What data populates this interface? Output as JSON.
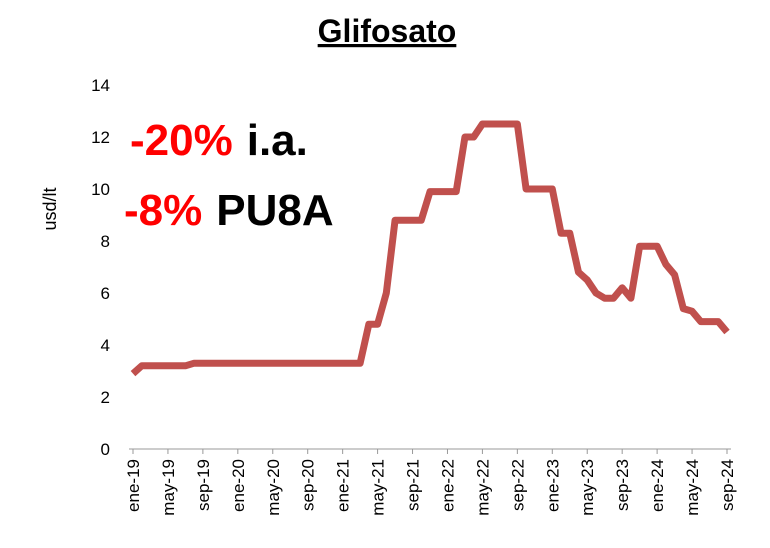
{
  "chart_data": {
    "type": "line",
    "title": "Glifosato",
    "y_label": "usd/lt",
    "annotations": [
      {
        "highlight": "-20%",
        "text": "i.a."
      },
      {
        "highlight": "-8%",
        "text": "PU8A"
      }
    ],
    "categories": [
      "ene-19",
      null,
      null,
      null,
      "may-19",
      null,
      null,
      null,
      "sep-19",
      null,
      null,
      null,
      "ene-20",
      null,
      null,
      null,
      "may-20",
      null,
      null,
      null,
      "sep-20",
      null,
      null,
      null,
      "ene-21",
      null,
      null,
      null,
      "may-21",
      null,
      null,
      null,
      "sep-21",
      null,
      null,
      null,
      "ene-22",
      null,
      null,
      null,
      "may-22",
      null,
      null,
      null,
      "sep-22",
      null,
      null,
      null,
      "ene-23",
      null,
      null,
      null,
      "may-23",
      null,
      null,
      null,
      "sep-23",
      null,
      null,
      null,
      "ene-24",
      null,
      null,
      null,
      "may-24",
      null,
      null,
      null,
      "sep-24"
    ],
    "series": [
      {
        "name": "Glifosato",
        "color": "#c0504d",
        "values": [
          2.9,
          3.2,
          3.2,
          3.2,
          3.2,
          3.2,
          3.2,
          3.3,
          3.3,
          3.3,
          3.3,
          3.3,
          3.3,
          3.3,
          3.3,
          3.3,
          3.3,
          3.3,
          3.3,
          3.3,
          3.3,
          3.3,
          3.3,
          3.3,
          3.3,
          3.3,
          3.3,
          4.8,
          4.8,
          6.0,
          8.8,
          8.8,
          8.8,
          8.8,
          9.9,
          9.9,
          9.9,
          9.9,
          12.0,
          12.0,
          12.5,
          12.5,
          12.5,
          12.5,
          12.5,
          10.0,
          10.0,
          10.0,
          10.0,
          8.3,
          8.3,
          6.8,
          6.5,
          6.0,
          5.8,
          5.8,
          6.2,
          5.8,
          7.8,
          7.8,
          7.8,
          7.1,
          6.7,
          5.4,
          5.3,
          4.9,
          4.9,
          4.9,
          4.5
        ]
      }
    ],
    "ylim": [
      0,
      14
    ],
    "yticks": [
      0,
      2,
      4,
      6,
      8,
      10,
      12,
      14
    ],
    "highlight_color": "#ff0000"
  }
}
